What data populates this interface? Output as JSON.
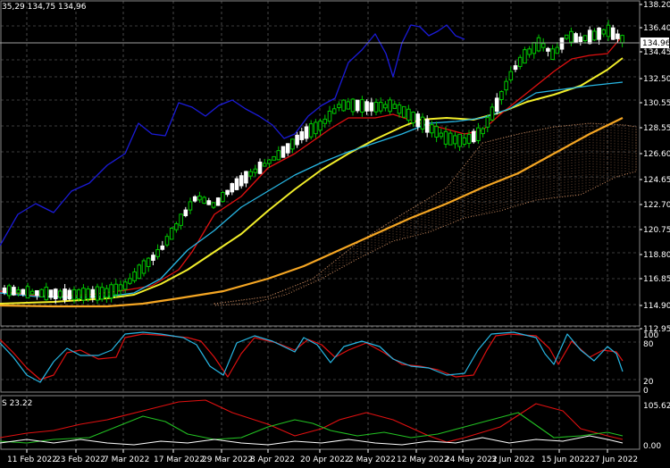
{
  "main_header": "35,29 134,75 134,96",
  "stoch_header": "",
  "lower_header": "S 23.22",
  "current_price_label": "134.96",
  "price_axis": [
    "138.20",
    "136.40",
    "134.45",
    "132.50",
    "130.55",
    "128.55",
    "126.60",
    "124.65",
    "122.70",
    "120.75",
    "118.80",
    "116.85",
    "114.90",
    "112.95"
  ],
  "stoch_axis": [
    "100",
    "80",
    "20",
    "0"
  ],
  "lower_axis": [
    "105.62",
    "0.00"
  ],
  "date_axis": [
    "11 Feb 2022",
    "23 Feb 2022",
    "7 Mar 2022",
    "17 Mar 2022",
    "29 Mar 2022",
    "8 Apr 2022",
    "20 Apr 2022",
    "2 May 2022",
    "12 May 2022",
    "24 May 2022",
    "3 Jun 2022",
    "15 Jun 2022",
    "27 Jun 2022"
  ],
  "colors": {
    "background": "#000000",
    "grid": "#7a7a7a",
    "bull_candle": "#00c800",
    "bear_candle": "#ffffff",
    "red_line": "#e01010",
    "cyan_line": "#27b6e3",
    "blue_line": "#1b1bd8",
    "yellow_line": "#f2ee2a",
    "orange_line": "#f5a623",
    "cloud": "#e09a6a",
    "green_line": "#22c022"
  }
}
